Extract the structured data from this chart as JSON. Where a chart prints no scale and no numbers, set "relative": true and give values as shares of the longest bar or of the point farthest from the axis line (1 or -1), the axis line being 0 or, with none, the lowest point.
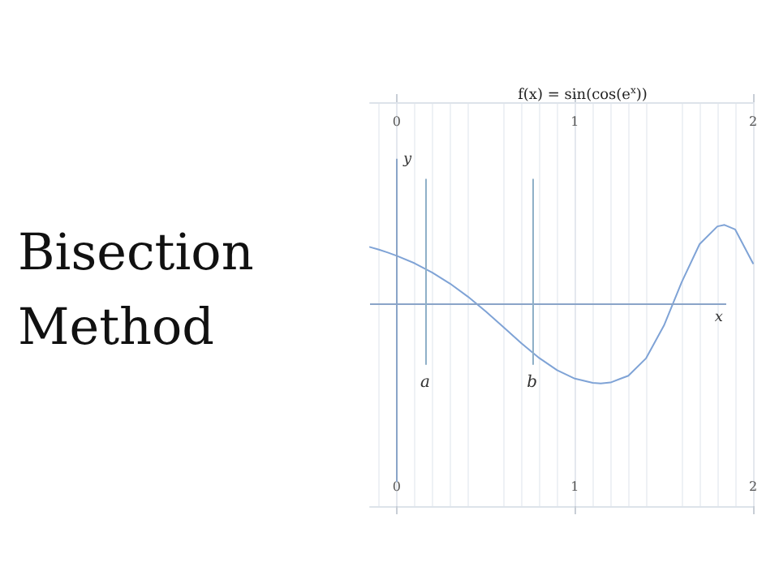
{
  "chart_data": {
    "type": "line",
    "title": "Bisection Method",
    "subtitle": "f(x) = sin(cos(e$^{x}$))",
    "xlabel": "x",
    "ylabel": "y",
    "relative": true,
    "x": [
      -0.15,
      -0.1,
      -0.05,
      0,
      0.1,
      0.2,
      0.3,
      0.4,
      0.5,
      0.6,
      0.7,
      0.8,
      0.9,
      1.0,
      1.1,
      1.145,
      1.2,
      1.3,
      1.4,
      1.5,
      1.6,
      1.7,
      1.8,
      1.84,
      1.9,
      2.0
    ],
    "series": [
      {
        "color": "#7fa3d6",
        "values": [
          0.721,
          0.688,
          0.652,
          0.611,
          0.517,
          0.399,
          0.258,
          0.094,
          -0.092,
          -0.292,
          -0.494,
          -0.68,
          -0.833,
          -0.94,
          -0.994,
          -1,
          -0.989,
          -0.904,
          -0.682,
          -0.269,
          0.28,
          0.758,
          0.982,
          1,
          0.943,
          0.515
        ]
      }
    ],
    "xlim": [
      -0.15,
      2
    ],
    "xticks": [
      0,
      1,
      2
    ],
    "x2lim": [
      -0.15,
      2
    ],
    "x2ticks": [
      0,
      1,
      2
    ],
    "ref_lines": [
      {
        "axis": "x",
        "value": 0,
        "color": "#8aa4c8"
      },
      {
        "axis": "y",
        "value": 0,
        "color": "#8aa4c8"
      },
      {
        "axis": "x",
        "value": 0.16,
        "label": "a",
        "color": "#8fb0c8"
      },
      {
        "axis": "x",
        "value": 0.76,
        "label": "b",
        "color": "#8fb0c8"
      }
    ],
    "grid": "x",
    "marker": "none",
    "line_style": "solid",
    "tick_labels": "x"
  }
}
